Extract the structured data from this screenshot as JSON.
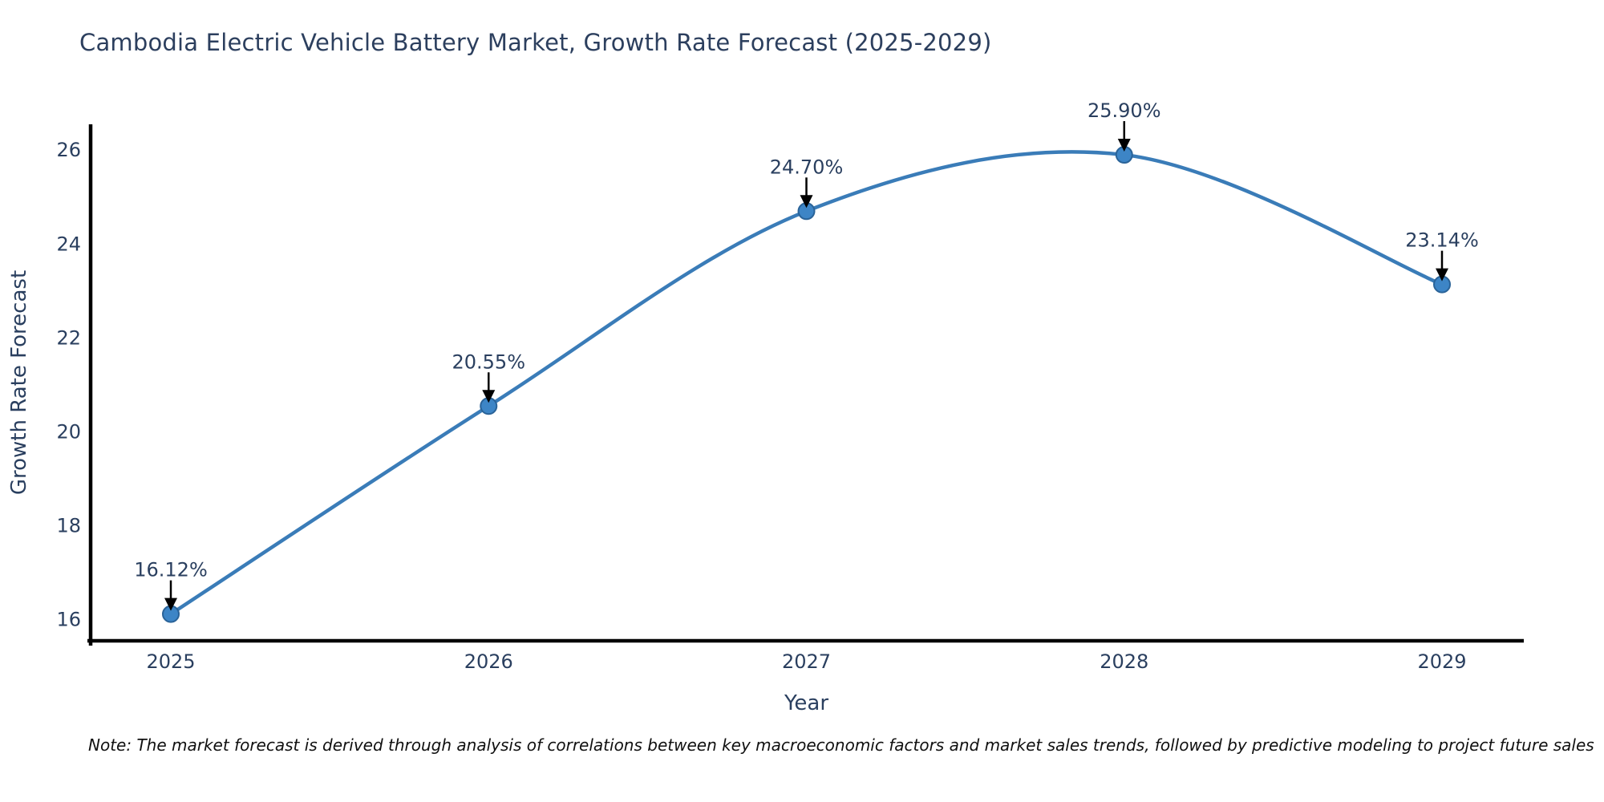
{
  "title": "Cambodia Electric Vehicle Battery Market, Growth Rate Forecast (2025-2029)",
  "note": "Note: The market forecast is derived through analysis of correlations between key macroeconomic factors and market sales trends, followed by predictive modeling to project future sales",
  "colors": {
    "line": "#3a7cb8",
    "marker_fill": "#3d85c6",
    "marker_edge": "#2a6398",
    "text": "#2a3f5f",
    "axis": "#000000",
    "arrow": "#000000",
    "background": "#ffffff"
  },
  "chart_data": {
    "type": "line",
    "title": "Cambodia Electric Vehicle Battery Market, Growth Rate Forecast (2025-2029)",
    "x": [
      2025,
      2026,
      2027,
      2028,
      2029
    ],
    "series": [
      {
        "name": "Growth Rate Forecast",
        "values": [
          16.12,
          20.55,
          24.7,
          25.9,
          23.14
        ]
      }
    ],
    "point_labels": [
      "16.12%",
      "20.55%",
      "24.70%",
      "25.90%",
      "23.14%"
    ],
    "xlabel": "Year",
    "ylabel": "Growth Rate Forecast",
    "yticks": [
      16,
      18,
      20,
      22,
      24,
      26
    ],
    "ylim": [
      15.55,
      26.55
    ],
    "grid": false,
    "legend": "none",
    "curve": "spline",
    "annotations": "value labels with downward arrows at each data point"
  }
}
